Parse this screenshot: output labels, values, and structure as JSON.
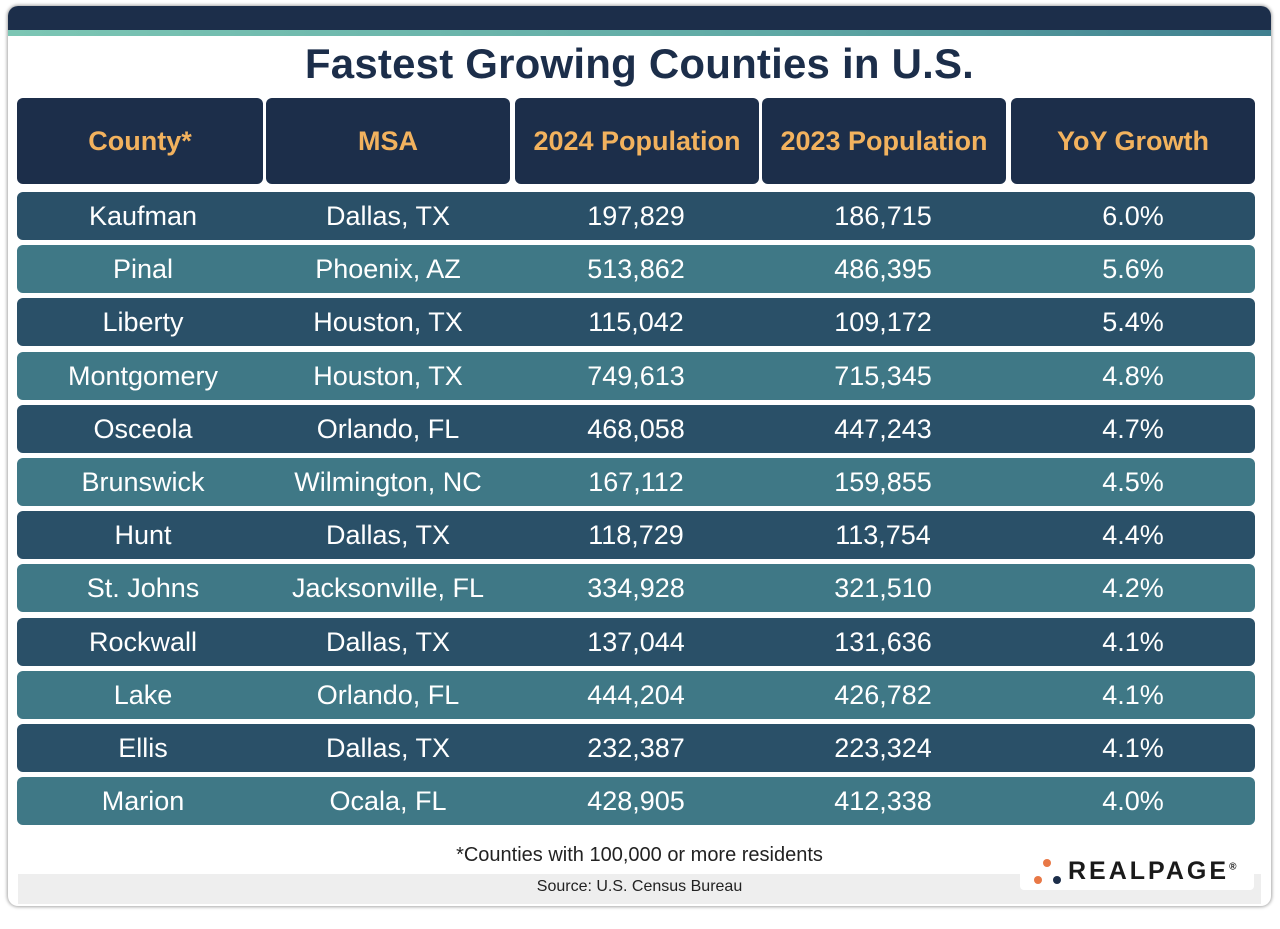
{
  "title": "Fastest Growing Counties in U.S.",
  "colors": {
    "navy": "#1c2e4a",
    "header_text": "#f2b25e",
    "row_dark": "#2a5068",
    "row_light": "#3f7886",
    "logo_orange": "#e87846"
  },
  "chart_data": {
    "type": "table",
    "title": "Fastest Growing Counties in U.S.",
    "columns": [
      "County*",
      "MSA",
      "2024 Population",
      "2023 Population",
      "YoY Growth"
    ],
    "rows": [
      [
        "Kaufman",
        "Dallas, TX",
        "197,829",
        "186,715",
        "6.0%"
      ],
      [
        "Pinal",
        "Phoenix, AZ",
        "513,862",
        "486,395",
        "5.6%"
      ],
      [
        "Liberty",
        "Houston, TX",
        "115,042",
        "109,172",
        "5.4%"
      ],
      [
        "Montgomery",
        "Houston, TX",
        "749,613",
        "715,345",
        "4.8%"
      ],
      [
        "Osceola",
        "Orlando, FL",
        "468,058",
        "447,243",
        "4.7%"
      ],
      [
        "Brunswick",
        "Wilmington, NC",
        "167,112",
        "159,855",
        "4.5%"
      ],
      [
        "Hunt",
        "Dallas, TX",
        "118,729",
        "113,754",
        "4.4%"
      ],
      [
        "St. Johns",
        "Jacksonville, FL",
        "334,928",
        "321,510",
        "4.2%"
      ],
      [
        "Rockwall",
        "Dallas, TX",
        "137,044",
        "131,636",
        "4.1%"
      ],
      [
        "Lake",
        "Orlando, FL",
        "444,204",
        "426,782",
        "4.1%"
      ],
      [
        "Ellis",
        "Dallas, TX",
        "232,387",
        "223,324",
        "4.1%"
      ],
      [
        "Marion",
        "Ocala, FL",
        "428,905",
        "412,338",
        "4.0%"
      ]
    ]
  },
  "footnote": "*Counties with 100,000 or more residents",
  "source": "Source: U.S. Census Bureau",
  "logo": {
    "text": "REALPAGE",
    "mark": "®"
  }
}
